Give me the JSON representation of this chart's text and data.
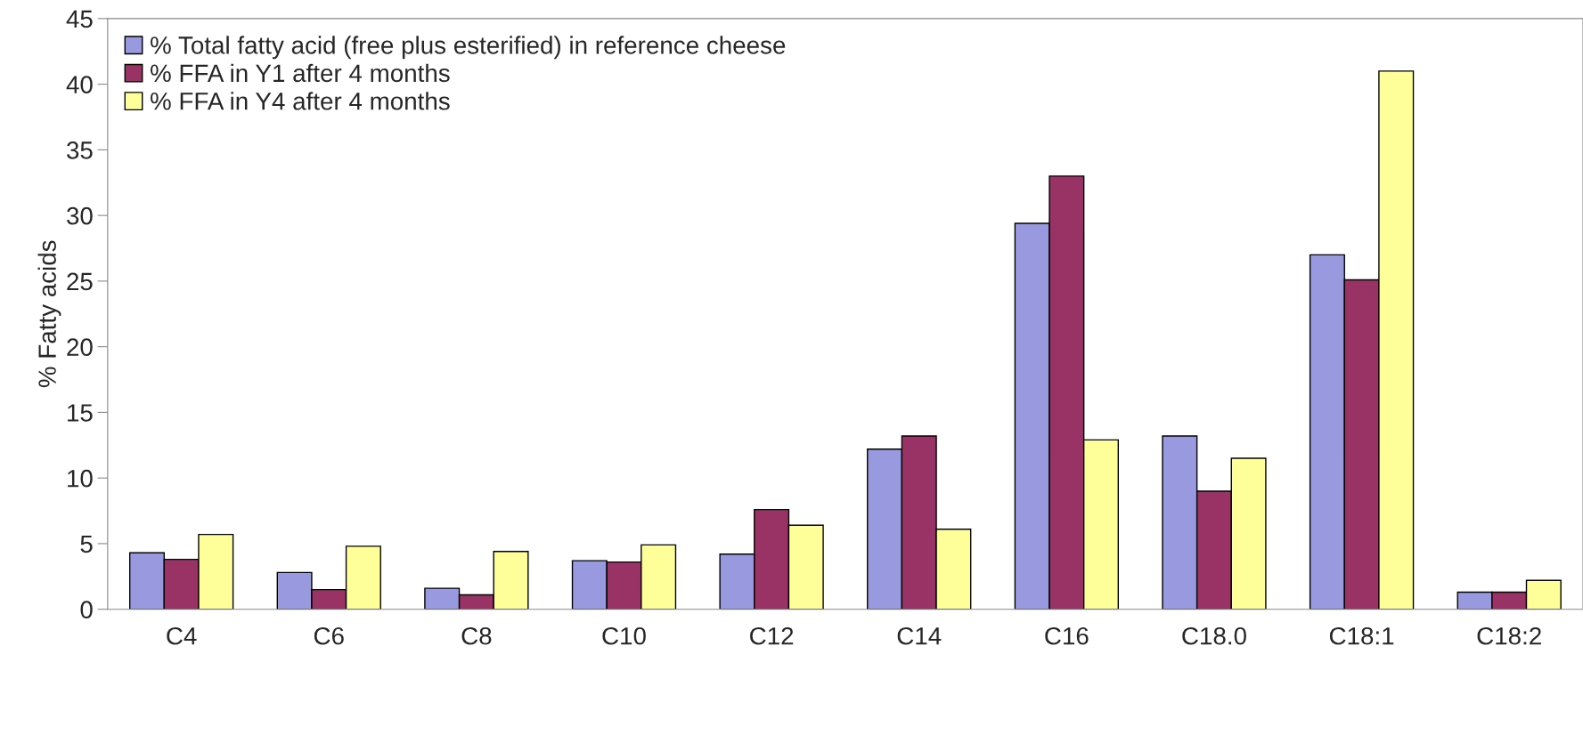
{
  "chart_data": {
    "type": "bar",
    "ylabel": "% Fatty acids",
    "categories": [
      "C4",
      "C6",
      "C8",
      "C10",
      "C12",
      "C14",
      "C16",
      "C18.0",
      "C18:1",
      "C18:2"
    ],
    "series": [
      {
        "name": "% Total fatty acid (free plus esterified) in reference cheese",
        "color": "#9999e0",
        "values": [
          4.3,
          2.8,
          1.6,
          3.7,
          4.2,
          12.2,
          29.4,
          13.2,
          27.0,
          1.3
        ]
      },
      {
        "name": "% FFA in Y1 after 4 months",
        "color": "#993366",
        "values": [
          3.8,
          1.5,
          1.1,
          3.6,
          7.6,
          13.2,
          33.0,
          9.0,
          25.1,
          1.3
        ]
      },
      {
        "name": "% FFA in Y4 after 4 months",
        "color": "#ffff99",
        "values": [
          5.7,
          4.8,
          4.4,
          4.9,
          6.4,
          6.1,
          12.9,
          11.5,
          41.0,
          2.2
        ]
      }
    ],
    "ylim": [
      0,
      45
    ],
    "yticks": [
      0,
      5,
      10,
      15,
      20,
      25,
      30,
      35,
      40,
      45
    ],
    "grid": false,
    "legend": "top left"
  }
}
